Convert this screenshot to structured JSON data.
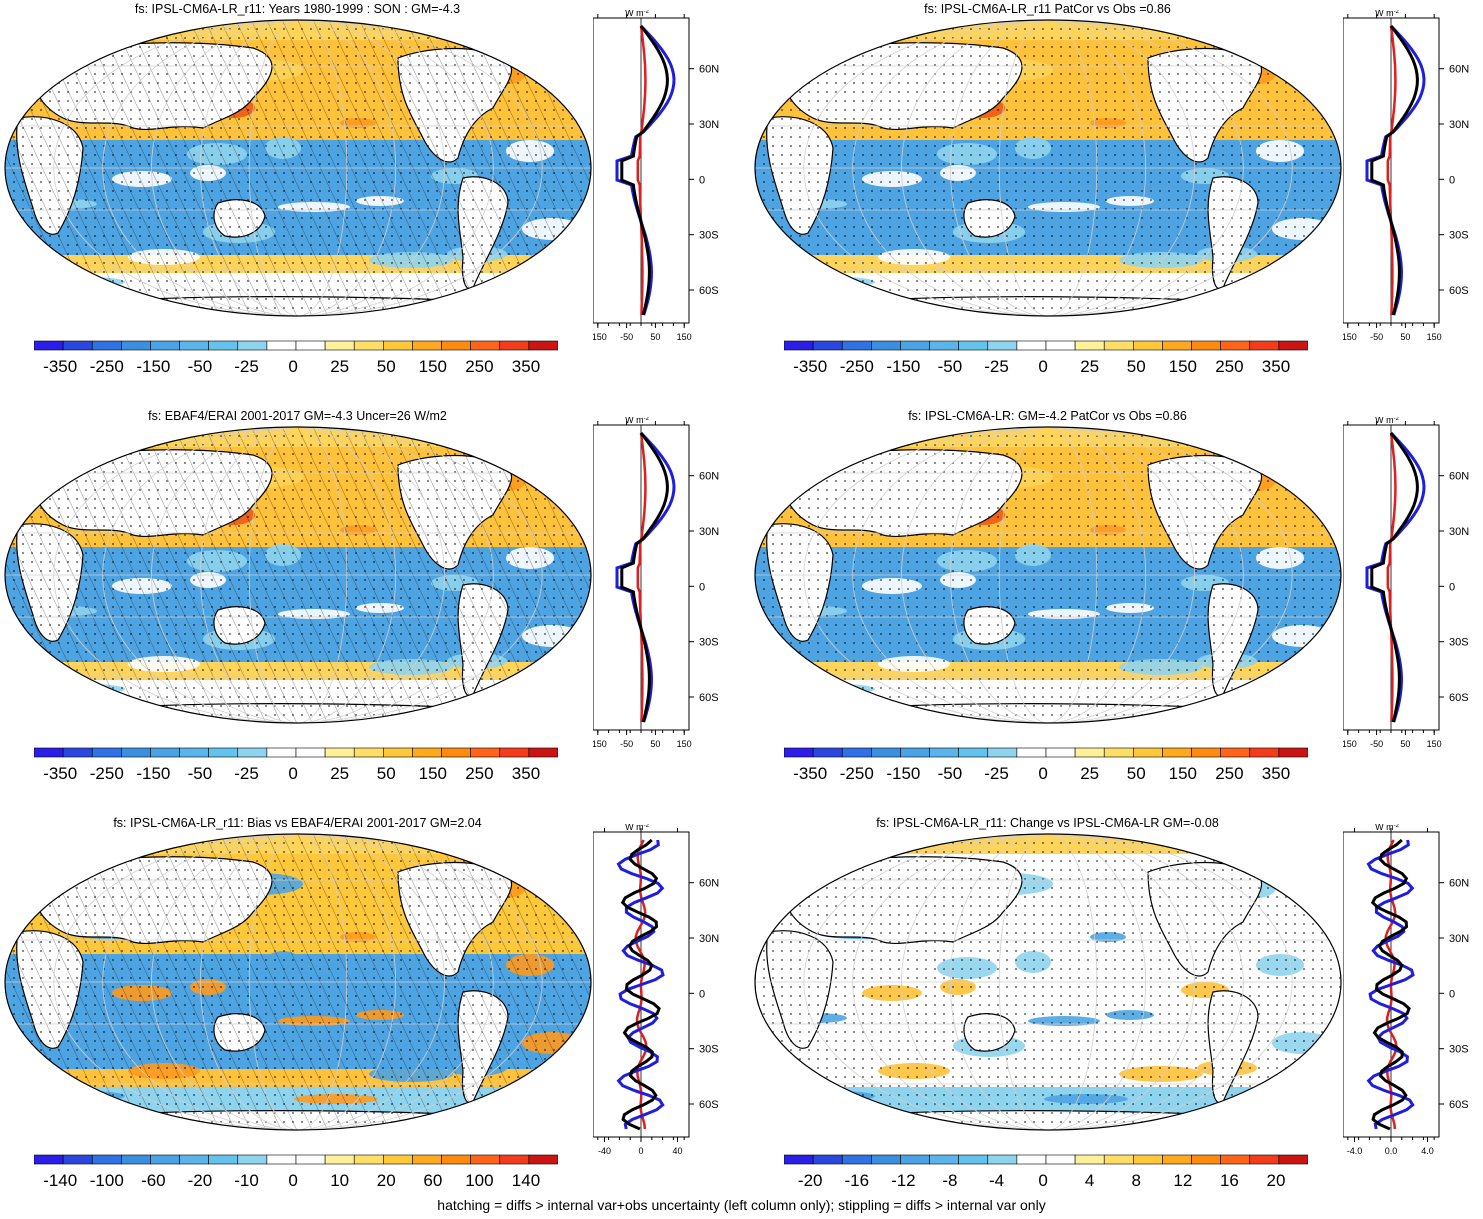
{
  "panels": [
    {
      "title": "fs: IPSL-CM6A-LR_r11: Years 1980-1999 : SON : GM=-4.3",
      "colorbar_labels": [
        "-350",
        "-250",
        "-150",
        "-50",
        "-25",
        "0",
        "25",
        "50",
        "150",
        "250",
        "350"
      ],
      "zonal_xticks": [
        "-150",
        "-50",
        "50",
        "150"
      ],
      "style": "clim",
      "hatched": true
    },
    {
      "title": "fs: IPSL-CM6A-LR_r11 PatCor vs Obs =0.86",
      "colorbar_labels": [
        "-350",
        "-250",
        "-150",
        "-50",
        "-25",
        "0",
        "25",
        "50",
        "150",
        "250",
        "350"
      ],
      "zonal_xticks": [
        "-150",
        "-50",
        "50",
        "150"
      ],
      "style": "clim",
      "hatched": false
    },
    {
      "title": "fs: EBAF4/ERAI 2001-2017 GM=-4.3 Uncer=26 W/m2",
      "colorbar_labels": [
        "-350",
        "-250",
        "-150",
        "-50",
        "-25",
        "0",
        "25",
        "50",
        "150",
        "250",
        "350"
      ],
      "zonal_xticks": [
        "-150",
        "-50",
        "50",
        "150"
      ],
      "style": "clim",
      "hatched": true
    },
    {
      "title": "fs: IPSL-CM6A-LR: GM=-4.2 PatCor vs Obs =0.86",
      "colorbar_labels": [
        "-350",
        "-250",
        "-150",
        "-50",
        "-25",
        "0",
        "25",
        "50",
        "150",
        "250",
        "350"
      ],
      "zonal_xticks": [
        "-150",
        "-50",
        "50",
        "150"
      ],
      "style": "clim",
      "hatched": false
    },
    {
      "title": "fs: IPSL-CM6A-LR_r11: Bias vs EBAF4/ERAI 2001-2017  GM=2.04",
      "colorbar_labels": [
        "-140",
        "-100",
        "-60",
        "-20",
        "-10",
        "0",
        "10",
        "20",
        "60",
        "100",
        "140"
      ],
      "zonal_xticks": [
        "-40",
        "0",
        "40"
      ],
      "style": "bias",
      "hatched": true
    },
    {
      "title": "fs: IPSL-CM6A-LR_r11: Change vs IPSL-CM6A-LR GM=-0.08",
      "colorbar_labels": [
        "-20",
        "-16",
        "-12",
        "-8",
        "-4",
        "0",
        "4",
        "8",
        "12",
        "16",
        "20"
      ],
      "zonal_xticks": [
        "-4.0",
        "0.0",
        "4.0"
      ],
      "style": "change",
      "hatched": false
    }
  ],
  "lat_labels": [
    "60N",
    "30N",
    "0",
    "30S",
    "60S"
  ],
  "zonal_unit": "W m",
  "zonal_unit_exp": "-2",
  "footnote": "hatching = diffs > internal var+obs uncertainty (left column only); stippling = diffs > internal var only",
  "colors": {
    "colorbar": [
      "#2a1ee8",
      "#2a47df",
      "#2f72e6",
      "#3a8fe0",
      "#4aa3e6",
      "#5ab6ea",
      "#63c3ec",
      "#8fd4ee",
      "#ffffff",
      "#ffffff",
      "#fff09a",
      "#ffde66",
      "#ffc83a",
      "#ffaa1e",
      "#ff8a10",
      "#ff6418",
      "#f23c1a",
      "#cc1414"
    ],
    "ocean_blue": "#4ea4e2",
    "ocean_orange": "#ffc23a",
    "land": "#ffffff",
    "series_model": "#000000",
    "series_obs": "#1e1ee0",
    "series_spread": "#e01e1e"
  }
}
